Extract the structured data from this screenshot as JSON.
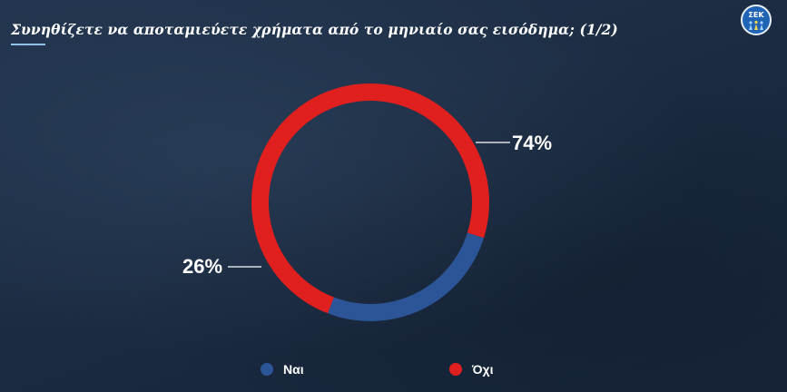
{
  "title": "Συνηθίζετε να αποταμιεύετε χρήματα από το μηνιαίο σας εισόδημα; (1/2)",
  "logo": {
    "text": "ΣΕΚ",
    "icon": "sek-logo-icon"
  },
  "colors": {
    "background": "#1d2e45",
    "nai": "#2b5596",
    "oxi": "#e01f1f",
    "text": "#ffffff",
    "accent": "#8fc3ea"
  },
  "chart_data": {
    "type": "pie",
    "style": "donut",
    "categories": [
      "Ναι",
      "Όχι"
    ],
    "values": [
      26,
      74
    ],
    "unit": "%",
    "data_labels": [
      "26%",
      "74%"
    ],
    "colors": [
      "#2b5596",
      "#e01f1f"
    ],
    "legend_position": "bottom"
  },
  "legend": [
    {
      "label": "Ναι",
      "color": "#2b5596"
    },
    {
      "label": "Όχι",
      "color": "#e01f1f"
    }
  ]
}
